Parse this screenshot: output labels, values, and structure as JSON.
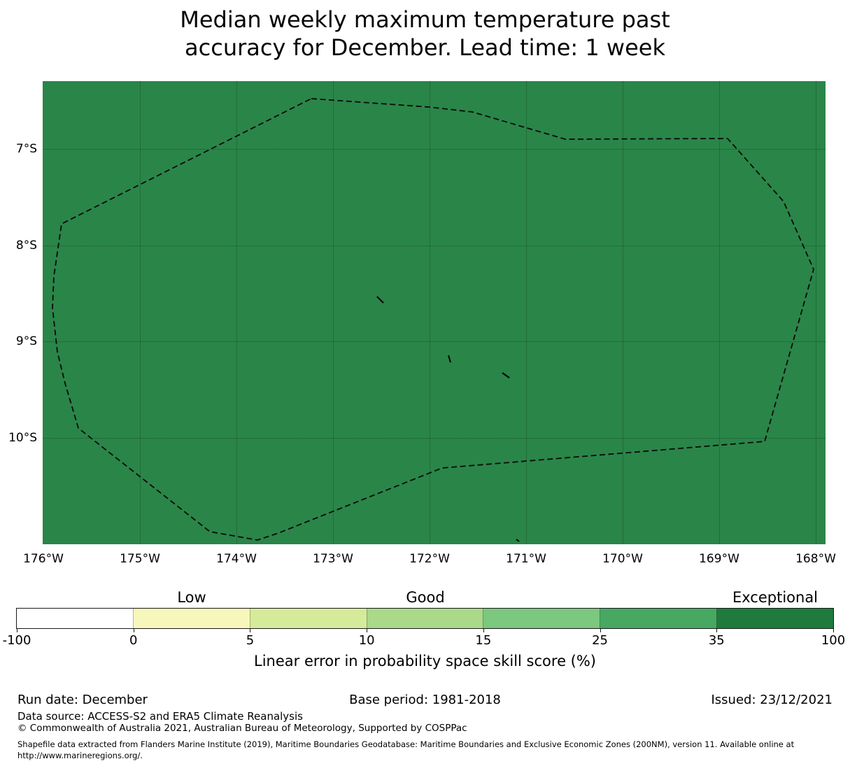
{
  "title": {
    "line1": "Median weekly maximum temperature past",
    "line2": "accuracy for December. Lead time: 1 week"
  },
  "map": {
    "fill_color": "#2a8548",
    "boundary": "dashed EEZ outline (Tokelau region)",
    "island_marks": 4,
    "lat_tick_labels": [
      "7°S",
      "8°S",
      "9°S",
      "10°S"
    ],
    "lon_tick_labels": [
      "176°W",
      "175°W",
      "174°W",
      "173°W",
      "172°W",
      "171°W",
      "170°W",
      "169°W",
      "168°W"
    ]
  },
  "colorbar": {
    "category_labels": [
      "Low",
      "Good",
      "Exceptional"
    ],
    "tick_labels": [
      "-100",
      "0",
      "5",
      "10",
      "15",
      "25",
      "35",
      "100"
    ],
    "segments": [
      {
        "range": "-100 to 0",
        "color": "#ffffff"
      },
      {
        "range": "0 to 5",
        "color": "#f8f7bb"
      },
      {
        "range": "5 to 10",
        "color": "#d6eb9a"
      },
      {
        "range": "10 to 15",
        "color": "#a9d989"
      },
      {
        "range": "15 to 25",
        "color": "#7cc87e"
      },
      {
        "range": "25 to 35",
        "color": "#47a862"
      },
      {
        "range": "35 to 100",
        "color": "#1e7b3d"
      }
    ],
    "axis_label": "Linear error in probability space skill score (%)"
  },
  "footer": {
    "run_date": "Run date: December",
    "base_period": "Base period: 1981-2018",
    "issued": "Issued: 23/12/2021",
    "data_source": "Data source: ACCESS-S2 and ERA5 Climate Reanalysis",
    "copyright": "© Commonwealth of Australia 2021, Australian Bureau of Meteorology, Supported by COSPPac",
    "shapefile_note": "Shapefile data extracted from Flanders Marine Institute (2019), Maritime Boundaries Geodatabase: Maritime Boundaries and Exclusive Economic Zones (200NM), version 11. Available online at",
    "shapefile_url": "http://www.marineregions.org/."
  }
}
